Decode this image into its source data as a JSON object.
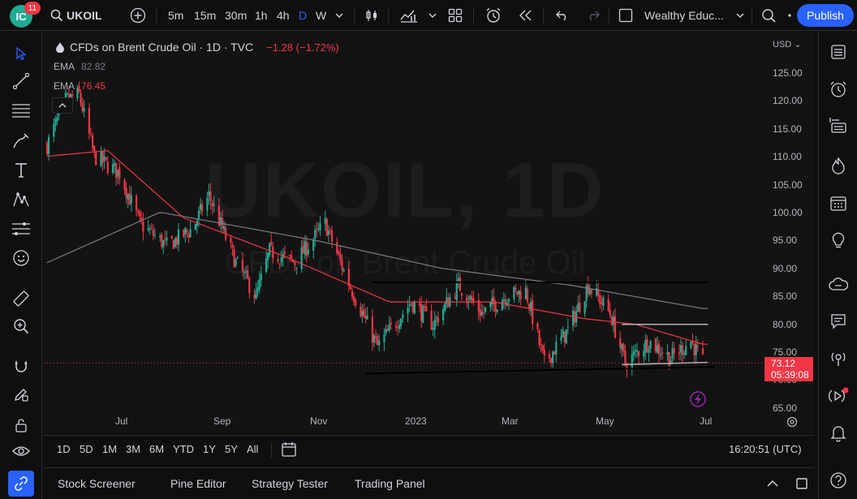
{
  "header": {
    "notifications": "11",
    "avatar_initials": "IC",
    "symbol": "UKOIL",
    "intervals": [
      "5m",
      "15m",
      "30m",
      "1h",
      "4h",
      "D",
      "W"
    ],
    "active_interval": "D",
    "layout_name": "Wealthy Educ...",
    "publish_label": "Publish"
  },
  "legend": {
    "title": "CFDs on Brent Crude Oil · 1D · TVC",
    "change": "−1.28 (−1.72%)",
    "ema1_label": "EMA",
    "ema1_value": "82.82",
    "ema2_label": "EMA",
    "ema2_value": "76.45"
  },
  "watermark": {
    "line1": "UKOIL, 1D",
    "line2": "CFDs on Brent Crude Oil"
  },
  "axis": {
    "currency": "USD",
    "price_ticks": [
      "125.00",
      "120.00",
      "115.00",
      "110.00",
      "105.00",
      "100.00",
      "95.00",
      "90.00",
      "85.00",
      "80.00",
      "75.00",
      "70.00",
      "65.00"
    ],
    "time_ticks": [
      "Jul",
      "Sep",
      "Nov",
      "2023",
      "Mar",
      "May",
      "Jul"
    ],
    "last_price": "73.12",
    "countdown": "05:39:08"
  },
  "ranges": [
    "1D",
    "5D",
    "1M",
    "3M",
    "6M",
    "YTD",
    "1Y",
    "5Y",
    "All"
  ],
  "clock": "16:20:51 (UTC)",
  "bottom_tabs": [
    "Stock Screener",
    "Pine Editor",
    "Strategy Tester",
    "Trading Panel"
  ],
  "colors": {
    "up": "#22ab94",
    "down": "#f23645",
    "accent": "#2962ff",
    "ema_fast": "#f23645",
    "ema_slow": "#787b86"
  },
  "chart_data": {
    "type": "candlestick",
    "title": "CFDs on Brent Crude Oil · 1D · TVC",
    "ylim": [
      65,
      125
    ],
    "price_anchors": [
      {
        "t": "2022-05-26",
        "close": 112
      },
      {
        "t": "2022-06-06",
        "close": 120
      },
      {
        "t": "2022-06-14",
        "close": 121
      },
      {
        "t": "2022-06-23",
        "close": 110
      },
      {
        "t": "2022-07-08",
        "close": 107
      },
      {
        "t": "2022-07-20",
        "close": 98
      },
      {
        "t": "2022-08-05",
        "close": 94
      },
      {
        "t": "2022-08-20",
        "close": 97
      },
      {
        "t": "2022-08-30",
        "close": 103
      },
      {
        "t": "2022-09-15",
        "close": 91
      },
      {
        "t": "2022-09-27",
        "close": 85
      },
      {
        "t": "2022-10-05",
        "close": 93
      },
      {
        "t": "2022-10-20",
        "close": 91
      },
      {
        "t": "2022-11-07",
        "close": 98
      },
      {
        "t": "2022-11-20",
        "close": 88
      },
      {
        "t": "2022-12-08",
        "close": 76
      },
      {
        "t": "2022-12-28",
        "close": 84
      },
      {
        "t": "2023-01-10",
        "close": 80
      },
      {
        "t": "2023-01-25",
        "close": 87
      },
      {
        "t": "2023-02-08",
        "close": 82
      },
      {
        "t": "2023-02-22",
        "close": 85
      },
      {
        "t": "2023-03-06",
        "close": 86
      },
      {
        "t": "2023-03-17",
        "close": 73
      },
      {
        "t": "2023-03-31",
        "close": 79
      },
      {
        "t": "2023-04-12",
        "close": 87
      },
      {
        "t": "2023-04-25",
        "close": 82
      },
      {
        "t": "2023-05-04",
        "close": 73
      },
      {
        "t": "2023-05-18",
        "close": 77
      },
      {
        "t": "2023-05-31",
        "close": 74
      },
      {
        "t": "2023-06-12",
        "close": 77
      },
      {
        "t": "2023-06-19",
        "close": 73.12
      }
    ],
    "ema_fast_anchors": [
      {
        "t": "2022-05-26",
        "v": 110
      },
      {
        "t": "2022-07-01",
        "v": 111
      },
      {
        "t": "2022-08-15",
        "v": 99
      },
      {
        "t": "2022-10-15",
        "v": 92
      },
      {
        "t": "2022-12-15",
        "v": 84
      },
      {
        "t": "2023-02-15",
        "v": 84
      },
      {
        "t": "2023-04-10",
        "v": 81
      },
      {
        "t": "2023-05-10",
        "v": 80
      },
      {
        "t": "2023-06-19",
        "v": 76.45
      }
    ],
    "ema_slow_anchors": [
      {
        "t": "2022-05-26",
        "v": 91
      },
      {
        "t": "2022-08-01",
        "v": 100
      },
      {
        "t": "2022-11-01",
        "v": 95
      },
      {
        "t": "2023-01-15",
        "v": 90
      },
      {
        "t": "2023-04-01",
        "v": 87
      },
      {
        "t": "2023-06-19",
        "v": 82.82
      }
    ],
    "trend_lines": [
      {
        "from": {
          "t": "2022-12-05",
          "v": 87.5
        },
        "to": {
          "t": "2023-06-23",
          "v": 87.5
        }
      },
      {
        "from": {
          "t": "2022-12-01",
          "v": 71.2
        },
        "to": {
          "t": "2023-06-26",
          "v": 72.4
        }
      },
      {
        "from": {
          "t": "2023-05-02",
          "v": 80
        },
        "to": {
          "t": "2023-06-22",
          "v": 80
        }
      },
      {
        "from": {
          "t": "2023-05-02",
          "v": 72.8
        },
        "to": {
          "t": "2023-06-22",
          "v": 73.2
        }
      }
    ],
    "last_close": 73.12,
    "change": "−1.28 (−1.72%)"
  }
}
